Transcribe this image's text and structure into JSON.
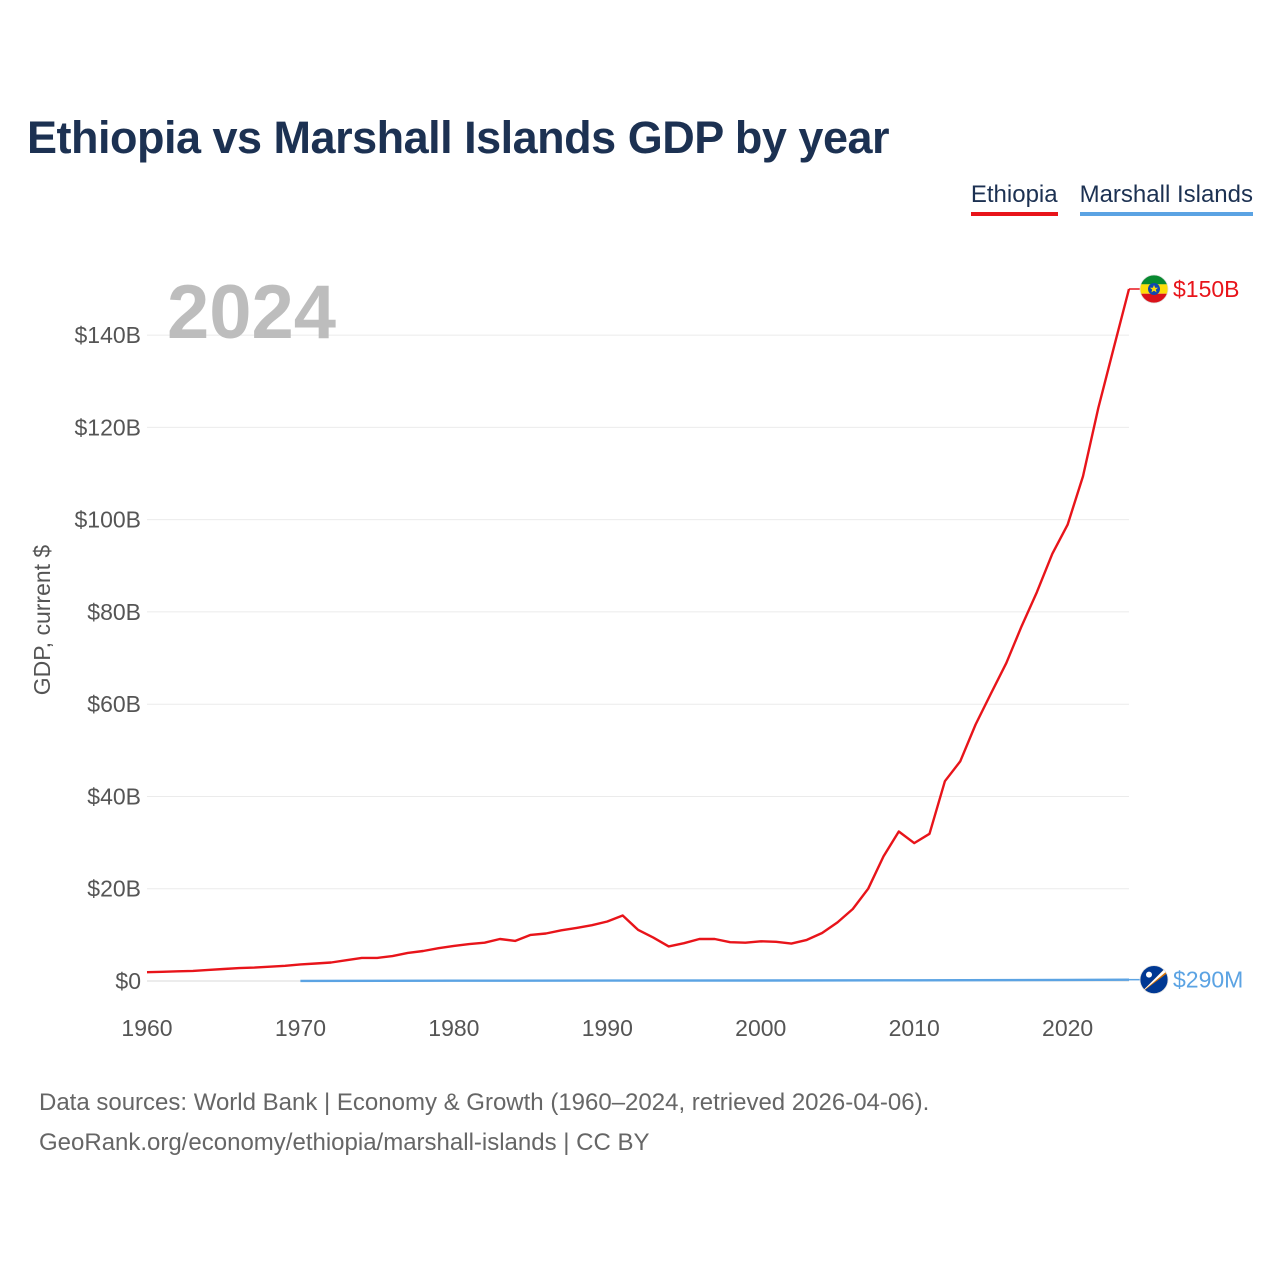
{
  "header": {
    "title": "Ethiopia vs Marshall Islands GDP by year"
  },
  "legend": {
    "items": [
      {
        "label": "Ethiopia",
        "color": "#e8141a"
      },
      {
        "label": "Marshall Islands",
        "color": "#5ba3e3"
      }
    ]
  },
  "chart_data": {
    "type": "line",
    "title": "Ethiopia vs Marshall Islands GDP by year",
    "ylabel": "GDP, current $",
    "xlabel": "",
    "current_year_label": "2024",
    "xlim": [
      1960,
      2024
    ],
    "ylim": [
      0,
      150
    ],
    "y_unit": "billions USD",
    "x_ticks": [
      "1960",
      "1970",
      "1980",
      "1990",
      "2000",
      "2010",
      "2020"
    ],
    "y_ticks": [
      {
        "value": 0,
        "label": "$0"
      },
      {
        "value": 20,
        "label": "$20B"
      },
      {
        "value": 40,
        "label": "$40B"
      },
      {
        "value": 60,
        "label": "$60B"
      },
      {
        "value": 80,
        "label": "$80B"
      },
      {
        "value": 100,
        "label": "$100B"
      },
      {
        "value": 120,
        "label": "$120B"
      },
      {
        "value": 140,
        "label": "$140B"
      }
    ],
    "grid": true,
    "series": [
      {
        "name": "Ethiopia",
        "color": "#e8141a",
        "end_label": "$150B",
        "flag_icon": "ethiopia-flag-icon",
        "x": [
          1960,
          1961,
          1962,
          1963,
          1964,
          1965,
          1966,
          1967,
          1968,
          1969,
          1970,
          1971,
          1972,
          1973,
          1974,
          1975,
          1976,
          1977,
          1978,
          1979,
          1980,
          1981,
          1982,
          1983,
          1984,
          1985,
          1986,
          1987,
          1988,
          1989,
          1990,
          1991,
          1992,
          1993,
          1994,
          1995,
          1996,
          1997,
          1998,
          1999,
          2000,
          2001,
          2002,
          2003,
          2004,
          2005,
          2006,
          2007,
          2008,
          2009,
          2010,
          2011,
          2012,
          2013,
          2014,
          2015,
          2016,
          2017,
          2018,
          2019,
          2020,
          2021,
          2022,
          2023,
          2024
        ],
        "values": [
          1.9,
          2.0,
          2.1,
          2.2,
          2.4,
          2.6,
          2.8,
          2.9,
          3.1,
          3.3,
          3.6,
          3.8,
          4.0,
          4.5,
          5.0,
          5.0,
          5.4,
          6.1,
          6.5,
          7.1,
          7.6,
          8.0,
          8.3,
          9.1,
          8.7,
          10.0,
          10.3,
          11.0,
          11.5,
          12.1,
          12.9,
          14.2,
          11.1,
          9.4,
          7.5,
          8.2,
          9.1,
          9.1,
          8.4,
          8.3,
          8.6,
          8.5,
          8.1,
          8.9,
          10.4,
          12.7,
          15.6,
          20.0,
          27.0,
          32.4,
          29.9,
          31.9,
          43.3,
          47.6,
          55.6,
          62.3,
          68.9,
          76.9,
          84.3,
          92.6,
          98.9,
          109.4,
          124.2,
          137.2,
          150.0
        ]
      },
      {
        "name": "Marshall Islands",
        "color": "#5ba3e3",
        "end_label": "$290M",
        "flag_icon": "marshall-islands-flag-icon",
        "x": [
          1970,
          1980,
          1990,
          2000,
          2010,
          2020,
          2024
        ],
        "values": [
          0.03,
          0.06,
          0.08,
          0.11,
          0.16,
          0.24,
          0.29
        ]
      }
    ]
  },
  "footer": {
    "line1": "Data sources: World Bank | Economy & Growth (1960–2024, retrieved 2026-04-06).",
    "line2": "GeoRank.org/economy/ethiopia/marshall-islands | CC BY"
  }
}
